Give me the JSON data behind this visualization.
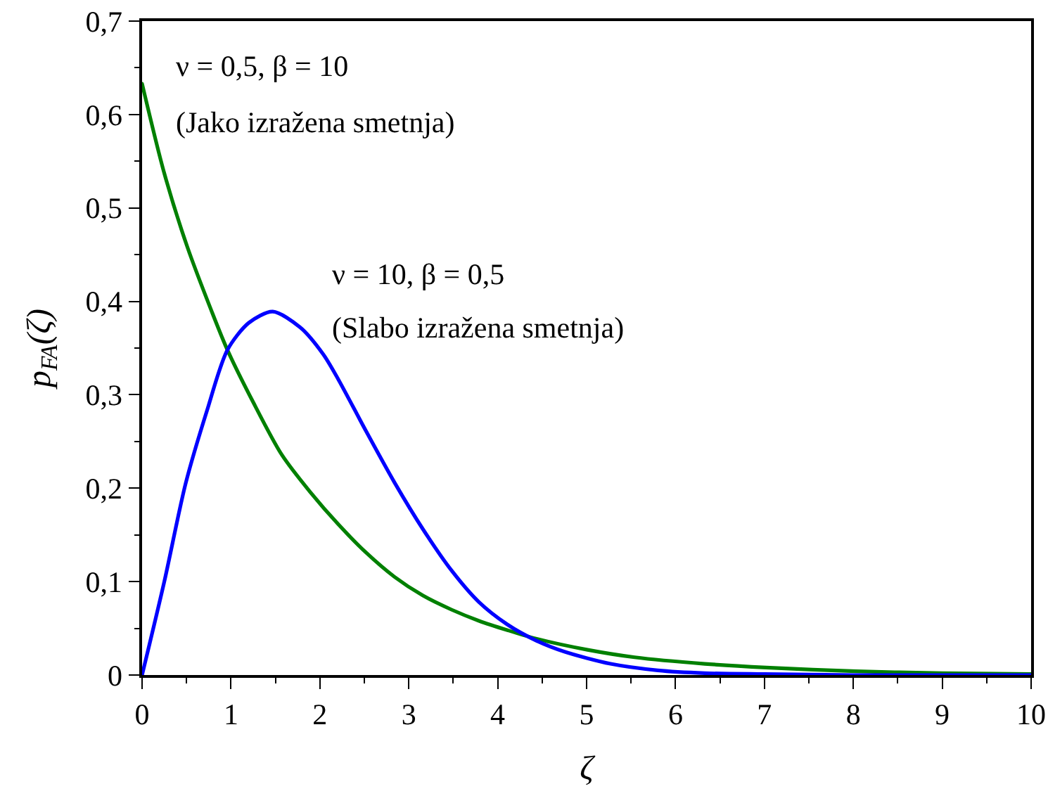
{
  "chart_data": {
    "type": "line",
    "xlabel": "ζ",
    "ylabel": "p$_{FA}$(ζ)",
    "xlim": [
      0,
      10
    ],
    "ylim": [
      0,
      0.7
    ],
    "xticks": [
      0,
      {
        "value": 0.5,
        "label": null
      },
      1,
      {
        "value": 1.5,
        "label": null
      },
      2,
      {
        "value": 2.5,
        "label": null
      },
      3,
      {
        "value": 3.5,
        "label": null
      },
      4,
      {
        "value": 4.5,
        "label": null
      },
      5,
      {
        "value": 5.5,
        "label": null
      },
      6,
      {
        "value": 6.5,
        "label": null
      },
      7,
      {
        "value": 7.5,
        "label": null
      },
      8,
      {
        "value": 8.5,
        "label": null
      },
      9,
      {
        "value": 9.5,
        "label": null
      },
      10
    ],
    "yticks": [
      0,
      {
        "value": 0.05,
        "label": null
      },
      {
        "value": 0.1,
        "label": "0,1"
      },
      {
        "value": 0.15,
        "label": null
      },
      {
        "value": 0.2,
        "label": "0,2"
      },
      {
        "value": 0.25,
        "label": null
      },
      {
        "value": 0.3,
        "label": "0,3"
      },
      {
        "value": 0.35,
        "label": null
      },
      {
        "value": 0.4,
        "label": "0,4"
      },
      {
        "value": 0.45,
        "label": null
      },
      {
        "value": 0.5,
        "label": "0,5"
      },
      {
        "value": 0.55,
        "label": null
      },
      {
        "value": 0.6,
        "label": "0,6"
      },
      {
        "value": 0.65,
        "label": null
      },
      {
        "value": 0.7,
        "label": "0,7"
      }
    ],
    "grid": false,
    "legend": false,
    "marker": "none",
    "line_style": "solid",
    "series": [
      {
        "name": "ν = 0,5, β = 10\n(Jako izražena smetnja)",
        "color": "#008000",
        "x": [
          0,
          0.25,
          0.51,
          0.78,
          0.96,
          1.25,
          1.57,
          1.89,
          2.21,
          2.52,
          2.84,
          3.16,
          3.48,
          3.79,
          4.11,
          4.43,
          5.01,
          5.54,
          6.33,
          7.02,
          8.03,
          9.0,
          10
        ],
        "values": [
          0.633,
          0.537,
          0.458,
          0.39,
          0.348,
          0.292,
          0.236,
          0.196,
          0.161,
          0.131,
          0.105,
          0.085,
          0.07,
          0.058,
          0.048,
          0.039,
          0.027,
          0.019,
          0.012,
          0.008,
          0.004,
          0.002,
          0.001
        ]
      },
      {
        "name": "ν = 10, β = 0,5\n(Slabo izražena smetnja)",
        "color": "#0000ff",
        "x": [
          0,
          0.25,
          0.49,
          0.73,
          0.96,
          1.2,
          1.47,
          1.78,
          2.04,
          2.21,
          2.52,
          2.84,
          3.16,
          3.48,
          3.79,
          4.11,
          4.43,
          4.75,
          5.27,
          5.8,
          6.33,
          7.0,
          8.0,
          9.0,
          10
        ],
        "values": [
          0,
          0.1,
          0.205,
          0.283,
          0.348,
          0.377,
          0.389,
          0.372,
          0.343,
          0.316,
          0.261,
          0.206,
          0.156,
          0.112,
          0.078,
          0.054,
          0.037,
          0.025,
          0.012,
          0.005,
          0.002,
          0.001,
          0,
          0,
          0
        ]
      }
    ]
  }
}
